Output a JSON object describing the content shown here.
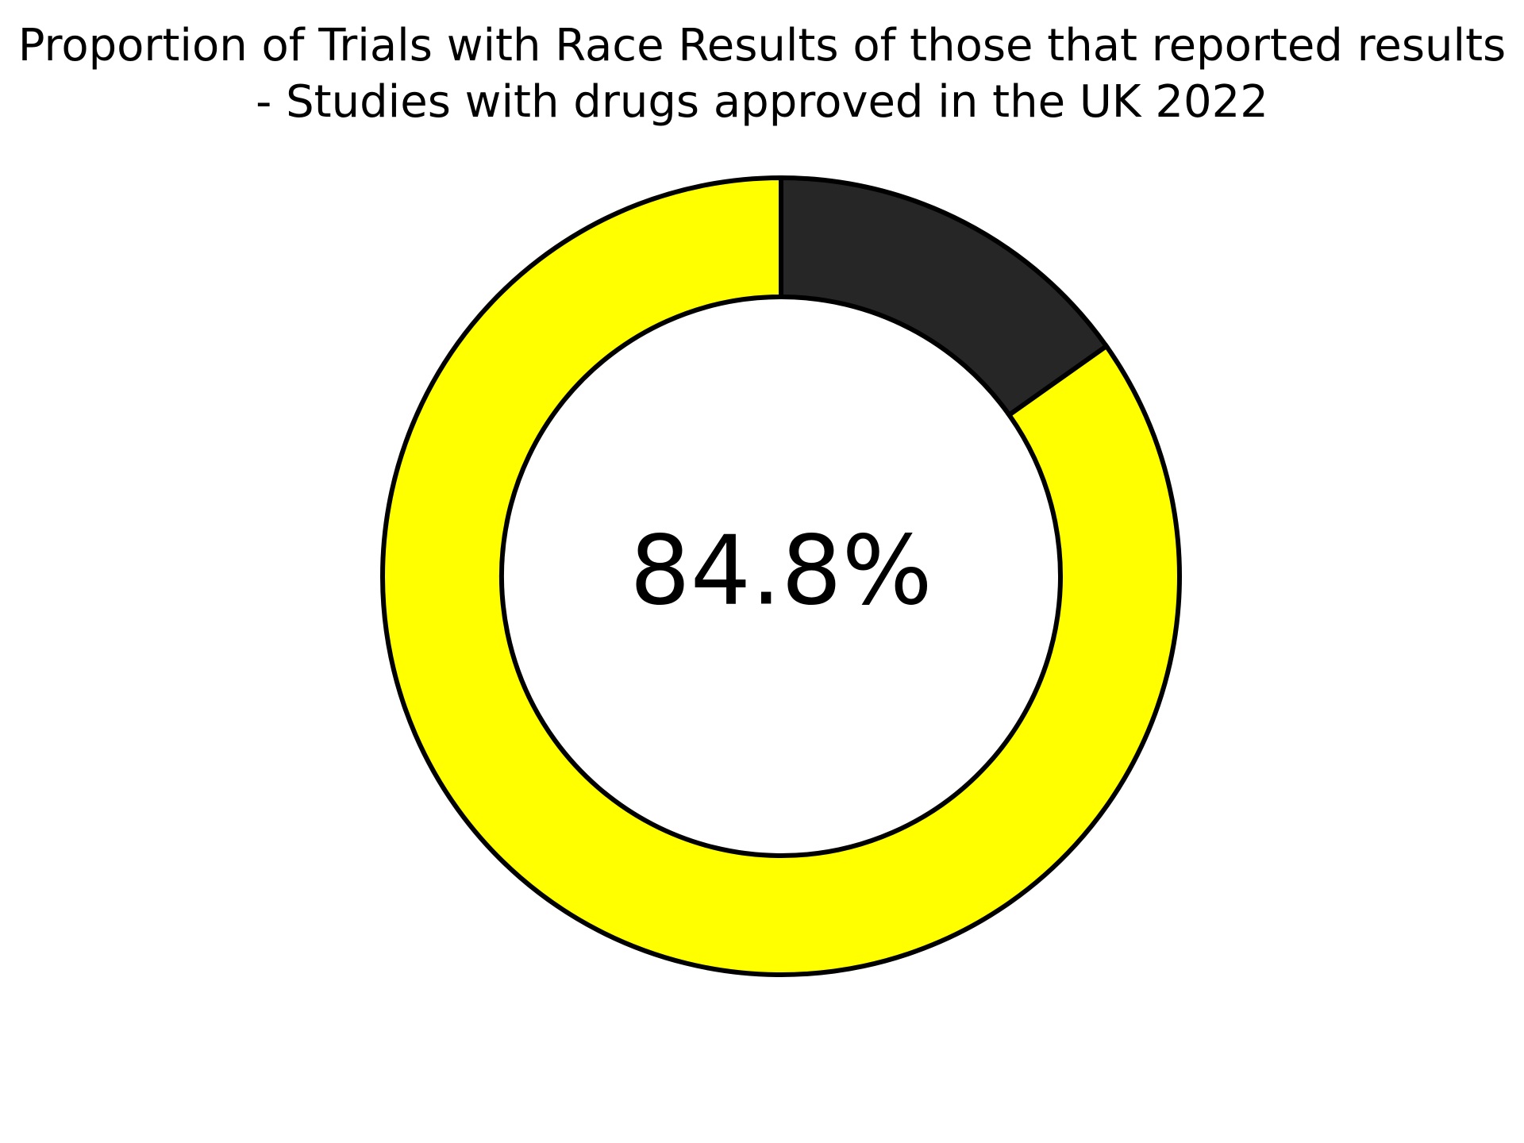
{
  "chart_data": {
    "type": "pie",
    "variant": "donut",
    "title_lines": [
      "Proportion of Trials with Race Results of those that reported results",
      "- Studies with drugs approved in the UK 2022"
    ],
    "center_label": "84.8%",
    "slices": [
      {
        "value": 84.8,
        "color": "#ffff00"
      },
      {
        "value": 15.2,
        "color": "#262626"
      }
    ],
    "start": "top",
    "direction": "counterclockwise",
    "edge_color": "#000000",
    "legend": "none"
  }
}
